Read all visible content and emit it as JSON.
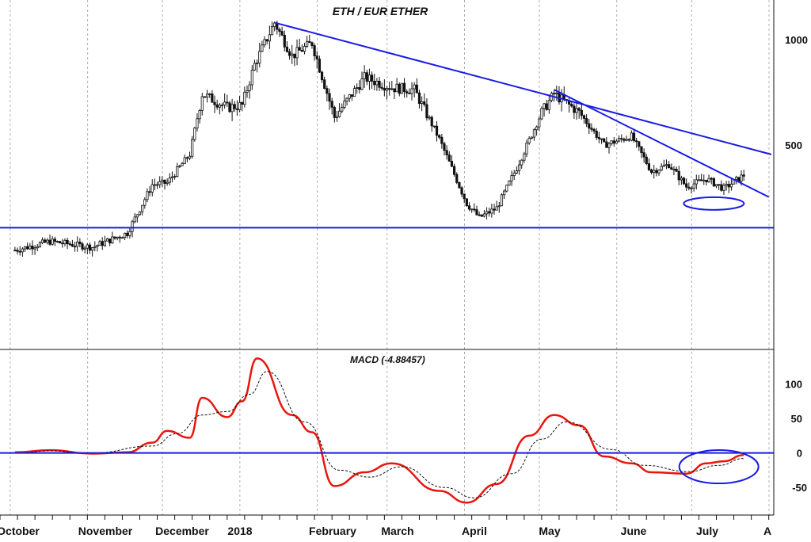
{
  "chart_data": [
    {
      "type": "candlestick",
      "title": "ETH / EUR ETHER",
      "y_scale": "log",
      "ylim": [
        130,
        1300
      ],
      "y_ticks": [
        {
          "value": 1000,
          "label": "1000"
        },
        {
          "value": 500,
          "label": "500"
        }
      ],
      "x_months": [
        "October",
        "November",
        "December",
        "2018",
        "February",
        "March",
        "April",
        "May",
        "June",
        "July",
        "A"
      ],
      "key_points": [
        {
          "date": "2017-10-01",
          "value": 250
        },
        {
          "date": "2017-10-15",
          "value": 265
        },
        {
          "date": "2017-11-01",
          "value": 255
        },
        {
          "date": "2017-11-15",
          "value": 280
        },
        {
          "date": "2017-11-25",
          "value": 385
        },
        {
          "date": "2017-12-01",
          "value": 390
        },
        {
          "date": "2017-12-10",
          "value": 470
        },
        {
          "date": "2017-12-15",
          "value": 700
        },
        {
          "date": "2017-12-25",
          "value": 640
        },
        {
          "date": "2017-12-31",
          "value": 650
        },
        {
          "date": "2018-01-05",
          "value": 850
        },
        {
          "date": "2018-01-13",
          "value": 1120
        },
        {
          "date": "2018-01-20",
          "value": 900
        },
        {
          "date": "2018-01-28",
          "value": 980
        },
        {
          "date": "2018-02-06",
          "value": 600
        },
        {
          "date": "2018-02-18",
          "value": 780
        },
        {
          "date": "2018-03-01",
          "value": 730
        },
        {
          "date": "2018-03-10",
          "value": 720
        },
        {
          "date": "2018-03-20",
          "value": 520
        },
        {
          "date": "2018-03-31",
          "value": 340
        },
        {
          "date": "2018-04-05",
          "value": 310
        },
        {
          "date": "2018-04-12",
          "value": 330
        },
        {
          "date": "2018-04-20",
          "value": 430
        },
        {
          "date": "2018-04-30",
          "value": 620
        },
        {
          "date": "2018-05-05",
          "value": 700
        },
        {
          "date": "2018-05-15",
          "value": 620
        },
        {
          "date": "2018-05-25",
          "value": 500
        },
        {
          "date": "2018-06-05",
          "value": 530
        },
        {
          "date": "2018-06-13",
          "value": 420
        },
        {
          "date": "2018-06-20",
          "value": 440
        },
        {
          "date": "2018-06-27",
          "value": 380
        },
        {
          "date": "2018-07-05",
          "value": 400
        },
        {
          "date": "2018-07-12",
          "value": 375
        },
        {
          "date": "2018-07-20",
          "value": 410
        }
      ]
    },
    {
      "type": "line",
      "title": "MACD (-4.88457)",
      "ylim": [
        -90,
        150
      ],
      "y_ticks": [
        {
          "value": 100,
          "label": "100"
        },
        {
          "value": 50,
          "label": "50"
        },
        {
          "value": 0,
          "label": "0"
        },
        {
          "value": -50,
          "label": "-50"
        }
      ],
      "series": [
        {
          "key": "macd",
          "color": "#e8160f",
          "style": "solid",
          "points": [
            {
              "date": "2017-10-01",
              "value": 1
            },
            {
              "date": "2017-10-15",
              "value": 4
            },
            {
              "date": "2017-11-01",
              "value": -1
            },
            {
              "date": "2017-11-15",
              "value": 1
            },
            {
              "date": "2017-11-25",
              "value": 15
            },
            {
              "date": "2017-12-01",
              "value": 32
            },
            {
              "date": "2017-12-10",
              "value": 22
            },
            {
              "date": "2017-12-15",
              "value": 80
            },
            {
              "date": "2017-12-25",
              "value": 52
            },
            {
              "date": "2017-12-31",
              "value": 75
            },
            {
              "date": "2018-01-06",
              "value": 137
            },
            {
              "date": "2018-01-20",
              "value": 55
            },
            {
              "date": "2018-01-28",
              "value": 30
            },
            {
              "date": "2018-02-06",
              "value": -48
            },
            {
              "date": "2018-02-18",
              "value": -28
            },
            {
              "date": "2018-03-01",
              "value": -15
            },
            {
              "date": "2018-03-20",
              "value": -55
            },
            {
              "date": "2018-03-31",
              "value": -72
            },
            {
              "date": "2018-04-12",
              "value": -45
            },
            {
              "date": "2018-04-25",
              "value": 25
            },
            {
              "date": "2018-05-05",
              "value": 55
            },
            {
              "date": "2018-05-15",
              "value": 40
            },
            {
              "date": "2018-05-25",
              "value": -5
            },
            {
              "date": "2018-06-05",
              "value": -15
            },
            {
              "date": "2018-06-13",
              "value": -28
            },
            {
              "date": "2018-06-27",
              "value": -30
            },
            {
              "date": "2018-07-05",
              "value": -15
            },
            {
              "date": "2018-07-12",
              "value": -12
            },
            {
              "date": "2018-07-20",
              "value": -3
            }
          ]
        },
        {
          "key": "signal",
          "color": "#111111",
          "style": "dashed",
          "points": [
            {
              "date": "2017-10-01",
              "value": 0
            },
            {
              "date": "2017-10-15",
              "value": 3
            },
            {
              "date": "2017-11-01",
              "value": 0
            },
            {
              "date": "2017-11-25",
              "value": 10
            },
            {
              "date": "2017-12-05",
              "value": 28
            },
            {
              "date": "2017-12-15",
              "value": 55
            },
            {
              "date": "2017-12-25",
              "value": 60
            },
            {
              "date": "2018-01-03",
              "value": 85
            },
            {
              "date": "2018-01-10",
              "value": 118
            },
            {
              "date": "2018-01-25",
              "value": 45
            },
            {
              "date": "2018-02-08",
              "value": -25
            },
            {
              "date": "2018-02-20",
              "value": -35
            },
            {
              "date": "2018-03-05",
              "value": -20
            },
            {
              "date": "2018-03-22",
              "value": -50
            },
            {
              "date": "2018-04-03",
              "value": -65
            },
            {
              "date": "2018-04-18",
              "value": -30
            },
            {
              "date": "2018-04-30",
              "value": 20
            },
            {
              "date": "2018-05-10",
              "value": 45
            },
            {
              "date": "2018-05-28",
              "value": 5
            },
            {
              "date": "2018-06-10",
              "value": -18
            },
            {
              "date": "2018-06-28",
              "value": -27
            },
            {
              "date": "2018-07-10",
              "value": -18
            },
            {
              "date": "2018-07-20",
              "value": -8
            }
          ]
        }
      ]
    }
  ],
  "annotations": {
    "resistance_line": {
      "color": "#1a1ae6",
      "from": {
        "date": "2018-01-13",
        "value": 1120
      },
      "to": {
        "date": "2018-07-31",
        "value": 470
      }
    },
    "upper_trendline": {
      "color": "#1a1ae6",
      "from": {
        "date": "2018-01-13",
        "value": 1120
      },
      "to": {
        "date": "2018-07-31",
        "value": 470
      }
    },
    "steep_trendline": {
      "color": "#1a1ae6",
      "from": {
        "date": "2018-05-05",
        "value": 720
      },
      "to": {
        "date": "2018-07-30",
        "value": 355
      }
    },
    "support_line": {
      "color": "#1a1ae6",
      "value": 290
    },
    "price_ellipse": {
      "color": "#1a1ae6",
      "center": {
        "date": "2018-07-08",
        "value": 340
      }
    },
    "macd_zero_line": {
      "color": "#1a1ae6",
      "value": 0
    },
    "macd_ellipse": {
      "color": "#1a1ae6",
      "center": {
        "date": "2018-07-10",
        "value": -20
      }
    }
  },
  "colors": {
    "candle": "#111111",
    "grid": "#b0b0b0"
  }
}
